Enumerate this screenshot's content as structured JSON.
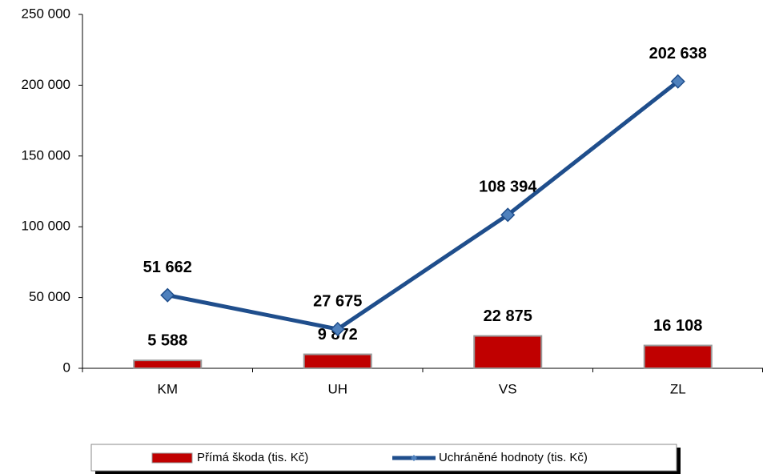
{
  "chart_data": {
    "type": "combo",
    "categories": [
      "KM",
      "UH",
      "VS",
      "ZL"
    ],
    "series": [
      {
        "name": "Přímá škoda (tis. Kč)",
        "type": "bar",
        "color": "#c00000",
        "values": [
          5588,
          9872,
          22875,
          16108
        ],
        "value_labels": [
          "5 588",
          "9 872",
          "22 875",
          "16 108"
        ]
      },
      {
        "name": "Uchráněné hodnoty (tis. Kč)",
        "type": "line",
        "color": "#1f4e8c",
        "marker_color": "#4f81bd",
        "values": [
          51662,
          27675,
          108394,
          202638
        ],
        "value_labels": [
          "51 662",
          "27 675",
          "108 394",
          "202 638"
        ]
      }
    ],
    "ylim": [
      0,
      250000
    ],
    "yticks": [
      0,
      {
        "value": 50000,
        "label": "50 000"
      },
      {
        "value": 100000,
        "label": "100 000"
      },
      {
        "value": 150000,
        "label": "150 000"
      },
      {
        "value": 200000,
        "label": "200 000"
      },
      {
        "value": 250000,
        "label": "250 000"
      }
    ],
    "grid": false,
    "legend": "bottom"
  }
}
